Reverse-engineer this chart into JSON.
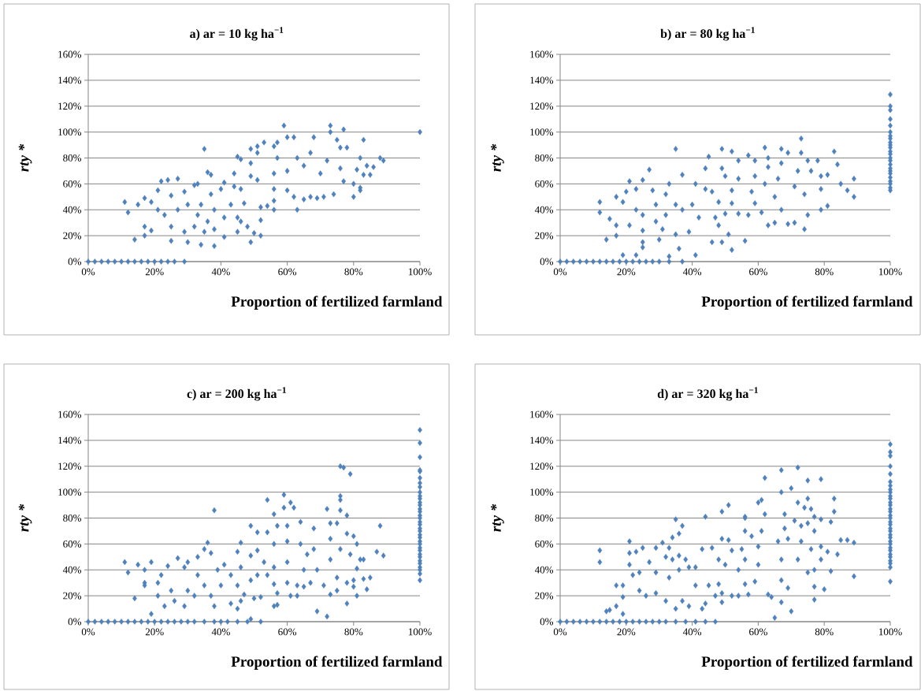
{
  "chart_data": [
    {
      "type": "scatter",
      "title": "a) ar = 10 kg ha$^{−1}$",
      "xlabel": "Proportion of fertilized farmland",
      "ylabel": "rty *",
      "series": [
        {
          "color": "#4f81bd",
          "x": [
            0,
            2,
            4,
            6,
            8,
            10,
            12,
            14,
            16,
            18,
            20,
            22,
            24,
            26,
            29,
            11,
            12,
            14,
            17,
            15,
            17,
            19,
            17,
            19,
            22,
            24,
            27,
            21,
            25,
            21,
            23,
            25,
            30,
            34,
            38,
            35,
            36,
            37,
            29,
            32,
            33,
            37,
            40,
            41,
            44,
            46,
            27,
            30,
            33,
            34,
            36,
            38,
            41,
            43,
            45,
            46,
            25,
            29,
            32,
            35,
            38,
            41,
            45,
            48,
            47,
            49,
            50,
            52,
            52,
            52,
            54,
            56,
            56,
            45,
            46,
            44,
            49,
            51,
            51,
            49,
            49,
            51,
            53,
            56,
            57,
            59,
            60,
            62,
            57,
            56,
            56,
            60,
            62,
            63,
            65,
            67,
            69,
            71,
            74,
            80,
            82,
            82,
            60,
            63,
            65,
            67,
            68,
            70,
            72,
            73,
            73,
            75,
            77,
            76,
            78,
            76,
            77,
            80,
            82,
            81,
            84,
            83,
            85,
            83,
            86,
            88,
            89,
            100
          ],
          "values": [
            0,
            0,
            0,
            0,
            0,
            0,
            0,
            0,
            0,
            0,
            0,
            0,
            0,
            0,
            0,
            46,
            38,
            17,
            20,
            44,
            49,
            46,
            27,
            24,
            62,
            63,
            64,
            55,
            51,
            40,
            36,
            16,
            15,
            13,
            12,
            87,
            69,
            67,
            54,
            59,
            60,
            52,
            56,
            61,
            58,
            56,
            40,
            44,
            36,
            44,
            31,
            40,
            34,
            44,
            34,
            31,
            27,
            23,
            27,
            23,
            25,
            19,
            23,
            27,
            45,
            15,
            22,
            20,
            32,
            42,
            43,
            40,
            47,
            81,
            79,
            68,
            87,
            89,
            84,
            76,
            66,
            63,
            92,
            89,
            92,
            105,
            96,
            96,
            80,
            68,
            56,
            55,
            50,
            40,
            48,
            50,
            49,
            50,
            52,
            50,
            55,
            57,
            70,
            80,
            74,
            84,
            96,
            68,
            78,
            105,
            100,
            94,
            102,
            88,
            88,
            72,
            62,
            60,
            80,
            71,
            74,
            67,
            67,
            94,
            73,
            80,
            78,
            100
          ]
        }
      ],
      "xlim": [
        0,
        100
      ],
      "ylim": [
        0,
        160
      ],
      "xticks": [
        {
          "value": 0,
          "label": "0%"
        },
        {
          "value": 20,
          "label": "20%"
        },
        {
          "value": 40,
          "label": "40%"
        },
        {
          "value": 60,
          "label": "60%"
        },
        {
          "value": 80,
          "label": "80%"
        },
        {
          "value": 100,
          "label": "100%"
        }
      ],
      "yticks": [
        {
          "value": 0,
          "label": "0%"
        },
        {
          "value": 20,
          "label": "20%"
        },
        {
          "value": 40,
          "label": "40%"
        },
        {
          "value": 60,
          "label": "60%"
        },
        {
          "value": 80,
          "label": "80%"
        },
        {
          "value": 100,
          "label": "100%"
        },
        {
          "value": 120,
          "label": "120%"
        },
        {
          "value": 140,
          "label": "140%"
        },
        {
          "value": 160,
          "label": "160%"
        }
      ],
      "grid": "y",
      "marker": "diamond"
    },
    {
      "type": "scatter",
      "title": "b) ar = 80 kg ha$^{−1}$",
      "xlabel": "Proportion of fertilized farmland",
      "ylabel": "rty *",
      "series": [
        {
          "color": "#4f81bd",
          "x": [
            0,
            2,
            4,
            6,
            8,
            10,
            12,
            14,
            16,
            18,
            20,
            22,
            24,
            26,
            28,
            30,
            33,
            37,
            12,
            12,
            15,
            17,
            17,
            14,
            19,
            23,
            17,
            19,
            21,
            20,
            25,
            27,
            23,
            21,
            25,
            25,
            25,
            30,
            33,
            36,
            41,
            35,
            37,
            33,
            28,
            29,
            32,
            35,
            23,
            25,
            29,
            32,
            37,
            40,
            42,
            39,
            35,
            31,
            41,
            44,
            46,
            48,
            44,
            45,
            49,
            52,
            49,
            50,
            47,
            48,
            50,
            46,
            49,
            51,
            52,
            56,
            52,
            54,
            52,
            54,
            57,
            54,
            57,
            59,
            59,
            58,
            59,
            62,
            63,
            63,
            62,
            61,
            63,
            65,
            67,
            69,
            67,
            66,
            65,
            67,
            69,
            71,
            74,
            75,
            73,
            73,
            75,
            72,
            71,
            74,
            78,
            76,
            79,
            81,
            79,
            79,
            81,
            83,
            84,
            85,
            87,
            89,
            89,
            100,
            100,
            100,
            100,
            100,
            100,
            100,
            100,
            100,
            100,
            100,
            100,
            100,
            100,
            100,
            100,
            100,
            100,
            100,
            100,
            100,
            100,
            100,
            100
          ],
          "values": [
            0,
            0,
            0,
            0,
            0,
            0,
            0,
            0,
            0,
            0,
            0,
            0,
            0,
            0,
            0,
            0,
            0,
            0,
            46,
            38,
            33,
            28,
            20,
            17,
            5,
            5,
            50,
            46,
            62,
            54,
            63,
            71,
            56,
            28,
            24,
            15,
            11,
            17,
            4,
            10,
            5,
            87,
            67,
            60,
            55,
            44,
            52,
            44,
            40,
            36,
            31,
            36,
            40,
            44,
            34,
            23,
            21,
            25,
            60,
            56,
            54,
            46,
            72,
            81,
            87,
            85,
            72,
            66,
            34,
            28,
            37,
            15,
            15,
            21,
            9,
            16,
            55,
            64,
            45,
            37,
            36,
            78,
            82,
            78,
            66,
            54,
            45,
            88,
            80,
            73,
            60,
            38,
            28,
            30,
            87,
            84,
            76,
            64,
            50,
            40,
            29,
            30,
            25,
            36,
            95,
            84,
            78,
            70,
            58,
            52,
            78,
            70,
            66,
            67,
            56,
            40,
            43,
            85,
            75,
            60,
            55,
            64,
            50,
            129,
            120,
            117,
            110,
            105,
            100,
            97,
            95,
            92,
            90,
            88,
            85,
            83,
            80,
            78,
            75,
            72,
            70,
            68,
            65,
            62,
            60,
            57,
            55
          ]
        }
      ],
      "xlim": [
        0,
        100
      ],
      "ylim": [
        0,
        160
      ],
      "xticks": [
        {
          "value": 0,
          "label": "0%"
        },
        {
          "value": 20,
          "label": "20%"
        },
        {
          "value": 40,
          "label": "40%"
        },
        {
          "value": 60,
          "label": "60%"
        },
        {
          "value": 80,
          "label": "80%"
        },
        {
          "value": 100,
          "label": "100%"
        }
      ],
      "yticks": [
        {
          "value": 0,
          "label": "0%"
        },
        {
          "value": 20,
          "label": "20%"
        },
        {
          "value": 40,
          "label": "40%"
        },
        {
          "value": 60,
          "label": "60%"
        },
        {
          "value": 80,
          "label": "80%"
        },
        {
          "value": 100,
          "label": "100%"
        },
        {
          "value": 120,
          "label": "120%"
        },
        {
          "value": 140,
          "label": "140%"
        },
        {
          "value": 160,
          "label": "160%"
        }
      ],
      "grid": "y",
      "marker": "diamond"
    },
    {
      "type": "scatter",
      "title": "c) ar = 200 kg ha$^{−1}$",
      "xlabel": "Proportion of fertilized farmland",
      "ylabel": "rty *",
      "series": [
        {
          "color": "#4f81bd",
          "x": [
            0,
            2,
            4,
            6,
            8,
            10,
            12,
            14,
            16,
            18,
            20,
            22,
            24,
            26,
            28,
            30,
            32,
            35,
            38,
            40,
            42,
            45,
            48,
            52,
            11,
            12,
            14,
            15,
            17,
            19,
            17,
            17,
            21,
            19,
            21,
            22,
            24,
            27,
            25,
            23,
            26,
            29,
            30,
            33,
            36,
            35,
            37,
            38,
            33,
            35,
            32,
            29,
            30,
            37,
            38,
            40,
            39,
            41,
            43,
            45,
            43,
            45,
            46,
            46,
            46,
            45,
            47,
            49,
            50,
            52,
            49,
            51,
            49,
            49,
            51,
            51,
            53,
            54,
            54,
            56,
            54,
            56,
            57,
            56,
            56,
            57,
            56,
            57,
            59,
            59,
            61,
            62,
            60,
            60,
            60,
            60,
            61,
            63,
            63,
            64,
            64,
            66,
            65,
            65,
            68,
            68,
            67,
            69,
            71,
            69,
            72,
            72,
            73,
            75,
            76,
            77,
            79,
            76,
            76,
            76,
            78,
            73,
            76,
            73,
            75,
            75,
            73,
            78,
            80,
            79,
            78,
            78,
            80,
            80,
            81,
            82,
            81,
            81,
            83,
            83,
            85,
            84,
            87,
            88,
            89,
            100,
            100,
            100,
            100,
            100,
            100,
            100,
            100,
            100,
            100,
            100,
            100,
            100,
            100,
            100,
            100,
            100,
            100,
            100,
            100,
            100,
            100,
            100,
            100,
            100,
            100,
            100,
            100,
            100,
            100,
            100,
            100,
            100,
            100,
            100
          ],
          "values": [
            0,
            0,
            0,
            0,
            0,
            0,
            0,
            0,
            0,
            0,
            0,
            0,
            0,
            0,
            0,
            0,
            0,
            0,
            0,
            0,
            0,
            0,
            0,
            0,
            46,
            38,
            18,
            44,
            40,
            46,
            30,
            28,
            30,
            6,
            20,
            36,
            43,
            49,
            24,
            12,
            16,
            42,
            46,
            50,
            61,
            56,
            53,
            86,
            36,
            28,
            20,
            12,
            24,
            20,
            12,
            28,
            40,
            44,
            36,
            28,
            14,
            10,
            16,
            42,
            61,
            54,
            21,
            2,
            18,
            19,
            74,
            69,
            51,
            32,
            36,
            55,
            46,
            36,
            94,
            83,
            69,
            60,
            74,
            42,
            29,
            22,
            12,
            13,
            98,
            88,
            92,
            88,
            74,
            62,
            46,
            30,
            20,
            20,
            28,
            77,
            60,
            52,
            40,
            27,
            72,
            56,
            30,
            40,
            28,
            8,
            4,
            87,
            76,
            76,
            120,
            119,
            114,
            97,
            94,
            86,
            82,
            64,
            56,
            48,
            34,
            24,
            21,
            68,
            66,
            52,
            30,
            14,
            32,
            27,
            60,
            48,
            41,
            20,
            48,
            33,
            34,
            25,
            54,
            74,
            51,
            148,
            138,
            127,
            117,
            116,
            111,
            107,
            104,
            100,
            97,
            95,
            92,
            90,
            87,
            85,
            82,
            80,
            77,
            75,
            72,
            70,
            67,
            65,
            62,
            60,
            57,
            55,
            52,
            50,
            47,
            45,
            42,
            40,
            37,
            32
          ]
        }
      ],
      "xlim": [
        0,
        100
      ],
      "ylim": [
        0,
        160
      ],
      "xticks": [
        {
          "value": 0,
          "label": "0%"
        },
        {
          "value": 20,
          "label": "20%"
        },
        {
          "value": 40,
          "label": "40%"
        },
        {
          "value": 60,
          "label": "60%"
        },
        {
          "value": 80,
          "label": "80%"
        },
        {
          "value": 100,
          "label": "100%"
        }
      ],
      "yticks": [
        {
          "value": 0,
          "label": "0%"
        },
        {
          "value": 20,
          "label": "20%"
        },
        {
          "value": 40,
          "label": "40%"
        },
        {
          "value": 60,
          "label": "60%"
        },
        {
          "value": 80,
          "label": "80%"
        },
        {
          "value": 100,
          "label": "100%"
        },
        {
          "value": 120,
          "label": "120%"
        },
        {
          "value": 140,
          "label": "140%"
        },
        {
          "value": 160,
          "label": "160%"
        }
      ],
      "grid": "y",
      "marker": "diamond"
    },
    {
      "type": "scatter",
      "title": "d) ar = 320 kg ha$^{−1}$",
      "xlabel": "Proportion of fertilized farmland",
      "ylabel": "rty *",
      "series": [
        {
          "color": "#4f81bd",
          "x": [
            0,
            2,
            4,
            6,
            8,
            10,
            12,
            14,
            16,
            18,
            20,
            22,
            24,
            26,
            28,
            30,
            32,
            35,
            38,
            41,
            44,
            47,
            12,
            12,
            14,
            15,
            17,
            19,
            17,
            19,
            19,
            21,
            21,
            23,
            25,
            21,
            22,
            24,
            27,
            29,
            31,
            33,
            34,
            35,
            37,
            36,
            32,
            34,
            36,
            38,
            29,
            33,
            36,
            39,
            41,
            44,
            43,
            46,
            49,
            51,
            49,
            51,
            48,
            50,
            52,
            24,
            26,
            29,
            32,
            35,
            37,
            39,
            41,
            43,
            44,
            45,
            47,
            48,
            49,
            49,
            52,
            54,
            57,
            56,
            56,
            56,
            58,
            55,
            56,
            54,
            56,
            60,
            61,
            62,
            62,
            61,
            60,
            60,
            59,
            63,
            64,
            65,
            67,
            67,
            67,
            70,
            72,
            75,
            79,
            68,
            68,
            66,
            69,
            67,
            67,
            69,
            70,
            72,
            74,
            75,
            71,
            73,
            75,
            73,
            72,
            75,
            76,
            77,
            79,
            77,
            76,
            79,
            77,
            77,
            77,
            80,
            79,
            82,
            83,
            83,
            81,
            84,
            82,
            85,
            87,
            89,
            89,
            100,
            100,
            100,
            100,
            100,
            100,
            100,
            100,
            100,
            100,
            100,
            100,
            100,
            100,
            100,
            100,
            100,
            100,
            100,
            100,
            100,
            100,
            100,
            100,
            100,
            100,
            100,
            100,
            100,
            100,
            100,
            100,
            100
          ],
          "values": [
            0,
            0,
            0,
            0,
            0,
            0,
            0,
            0,
            0,
            0,
            0,
            0,
            0,
            0,
            0,
            0,
            0,
            0,
            0,
            0,
            0,
            0,
            55,
            46,
            8,
            9,
            12,
            6,
            28,
            28,
            19,
            62,
            53,
            54,
            57,
            44,
            36,
            38,
            46,
            57,
            61,
            57,
            65,
            79,
            74,
            68,
            50,
            48,
            51,
            48,
            38,
            34,
            40,
            42,
            42,
            81,
            56,
            57,
            85,
            90,
            64,
            63,
            48,
            44,
            55,
            24,
            20,
            22,
            16,
            10,
            16,
            12,
            28,
            10,
            14,
            28,
            20,
            29,
            22,
            15,
            20,
            20,
            21,
            80,
            81,
            70,
            66,
            56,
            48,
            40,
            29,
            92,
            94,
            111,
            83,
            70,
            58,
            44,
            31,
            21,
            19,
            3,
            15,
            117,
            100,
            103,
            119,
            109,
            110,
            83,
            72,
            62,
            64,
            48,
            32,
            26,
            8,
            92,
            88,
            95,
            78,
            74,
            76,
            62,
            48,
            38,
            87,
            81,
            79,
            70,
            56,
            48,
            40,
            27,
            17,
            25,
            58,
            77,
            95,
            85,
            54,
            52,
            39,
            63,
            63,
            61,
            35,
            137,
            131,
            128,
            120,
            114,
            108,
            105,
            102,
            100,
            97,
            95,
            92,
            90,
            87,
            85,
            82,
            80,
            77,
            75,
            72,
            70,
            67,
            65,
            62,
            60,
            57,
            55,
            52,
            50,
            47,
            45,
            42,
            31
          ]
        }
      ],
      "xlim": [
        0,
        100
      ],
      "ylim": [
        0,
        160
      ],
      "xticks": [
        {
          "value": 0,
          "label": "0%"
        },
        {
          "value": 20,
          "label": "20%"
        },
        {
          "value": 40,
          "label": "40%"
        },
        {
          "value": 60,
          "label": "60%"
        },
        {
          "value": 80,
          "label": "80%"
        },
        {
          "value": 100,
          "label": "100%"
        }
      ],
      "yticks": [
        {
          "value": 0,
          "label": "0%"
        },
        {
          "value": 20,
          "label": "20%"
        },
        {
          "value": 40,
          "label": "40%"
        },
        {
          "value": 60,
          "label": "60%"
        },
        {
          "value": 80,
          "label": "80%"
        },
        {
          "value": 100,
          "label": "100%"
        },
        {
          "value": 120,
          "label": "120%"
        },
        {
          "value": 140,
          "label": "140%"
        },
        {
          "value": 160,
          "label": "160%"
        }
      ],
      "grid": "y",
      "marker": "diamond"
    }
  ]
}
